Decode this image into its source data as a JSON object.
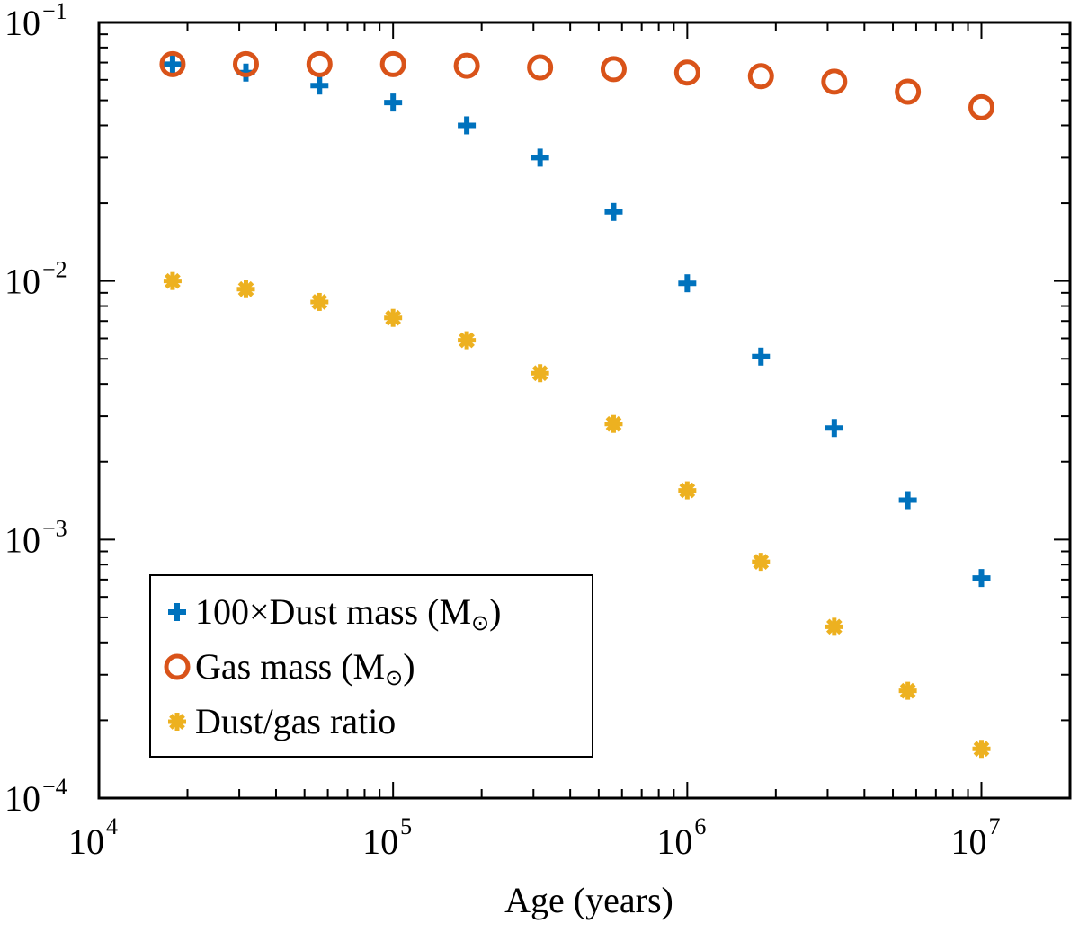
{
  "chart_data": {
    "type": "scatter",
    "title": "",
    "xlabel": "Age (years)",
    "ylabel": "",
    "xscale": "log",
    "yscale": "log",
    "xlim": [
      10000,
      20000000
    ],
    "ylim": [
      0.0001,
      0.1
    ],
    "x_ticks": [
      {
        "base": "10",
        "exp": "4"
      },
      {
        "base": "10",
        "exp": "5"
      },
      {
        "base": "10",
        "exp": "6"
      },
      {
        "base": "10",
        "exp": "7"
      }
    ],
    "y_ticks": [
      {
        "base": "10",
        "exp": "−1"
      },
      {
        "base": "10",
        "exp": "−2"
      },
      {
        "base": "10",
        "exp": "−3"
      },
      {
        "base": "10",
        "exp": "−4"
      }
    ],
    "grid": false,
    "legend_position": "bottom-left",
    "x": [
      17800,
      31600,
      56200,
      100000,
      178000,
      316000,
      562000,
      1000000,
      1780000,
      3160000,
      5620000,
      10000000
    ],
    "series": [
      {
        "name": "100×Dust mass (M",
        "unit_symbol": "⊙",
        "name_close": ")",
        "marker": "plus",
        "color": "#0072BD",
        "values": [
          0.069,
          0.064,
          0.057,
          0.049,
          0.04,
          0.03,
          0.0185,
          0.0098,
          0.0051,
          0.0027,
          0.00142,
          0.00071
        ]
      },
      {
        "name": "Gas mass (M",
        "unit_symbol": "⊙",
        "name_close": ")",
        "marker": "circle",
        "color": "#D95319",
        "values": [
          0.069,
          0.069,
          0.069,
          0.069,
          0.068,
          0.067,
          0.066,
          0.064,
          0.062,
          0.059,
          0.054,
          0.047
        ]
      },
      {
        "name": "Dust/gas ratio",
        "unit_symbol": "",
        "name_close": "",
        "marker": "asterisk",
        "color": "#EDB120",
        "values": [
          0.01,
          0.0093,
          0.0083,
          0.0072,
          0.0059,
          0.0044,
          0.0028,
          0.00155,
          0.00082,
          0.00046,
          0.00026,
          0.000155
        ]
      }
    ]
  }
}
